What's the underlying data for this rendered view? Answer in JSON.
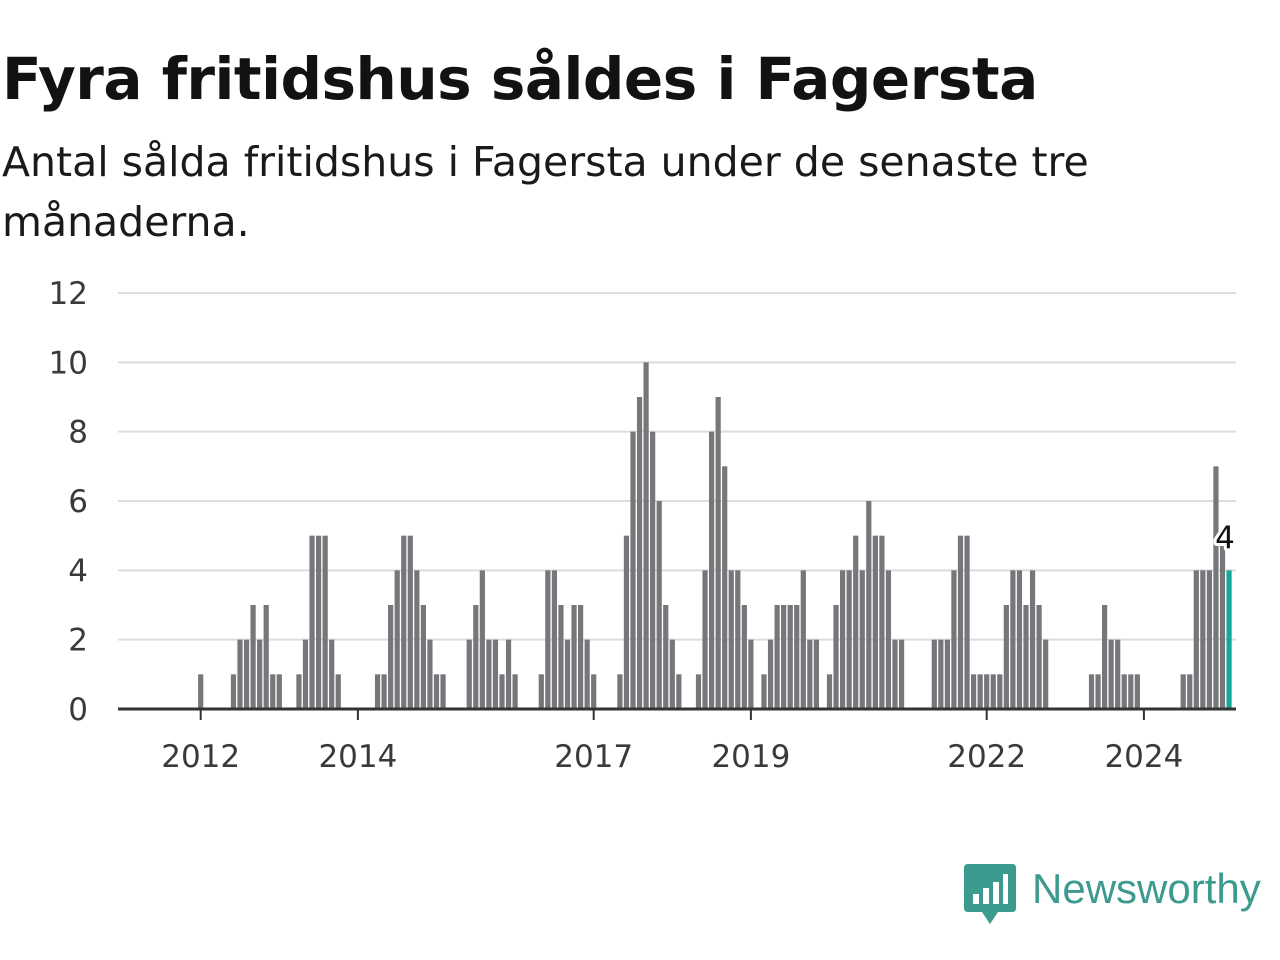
{
  "header": {
    "title": "Fyra fritidshus såldes i Fagersta",
    "subtitle": "Antal sålda fritidshus i Fagersta under de senaste tre månaderna."
  },
  "brand": {
    "name": "Newsworthy",
    "icon": "newsworthy-logo-icon",
    "color": "#3c9a8e"
  },
  "chart_data": {
    "type": "bar",
    "title": "",
    "xlabel": "",
    "ylabel": "",
    "ylim": [
      0,
      12
    ],
    "yticks": [
      0,
      2,
      4,
      6,
      8,
      10,
      12
    ],
    "grid": true,
    "x_start": "2011-01",
    "xticks": [
      {
        "label": "2012",
        "at": "2012-01"
      },
      {
        "label": "2014",
        "at": "2014-01"
      },
      {
        "label": "2017",
        "at": "2017-01"
      },
      {
        "label": "2019",
        "at": "2019-01"
      },
      {
        "label": "2022",
        "at": "2022-01"
      },
      {
        "label": "2024",
        "at": "2024-01"
      }
    ],
    "colors": {
      "bar": "#77767b",
      "highlight": "#16a69a",
      "grid": "#dddddd",
      "axis": "#333333"
    },
    "highlight_label": "4",
    "series": [
      {
        "values": [
          0,
          0,
          0,
          0,
          0,
          0,
          0,
          0,
          0,
          0,
          0,
          0,
          1,
          0,
          0,
          0,
          0,
          1,
          2,
          2,
          3,
          2,
          3,
          1,
          1,
          0,
          0,
          1,
          2,
          5,
          5,
          5,
          2,
          1,
          0,
          0,
          0,
          0,
          0,
          1,
          1,
          3,
          4,
          5,
          5,
          4,
          3,
          2,
          1,
          1,
          0,
          0,
          0,
          2,
          3,
          4,
          2,
          2,
          1,
          2,
          1,
          0,
          0,
          0,
          1,
          4,
          4,
          3,
          2,
          3,
          3,
          2,
          1,
          0,
          0,
          0,
          1,
          5,
          8,
          9,
          10,
          8,
          6,
          3,
          2,
          1,
          0,
          0,
          1,
          4,
          8,
          9,
          7,
          4,
          4,
          3,
          2,
          0,
          1,
          2,
          3,
          3,
          3,
          3,
          4,
          2,
          2,
          0,
          1,
          3,
          4,
          4,
          5,
          4,
          6,
          5,
          5,
          4,
          2,
          2,
          0,
          0,
          0,
          0,
          2,
          2,
          2,
          4,
          5,
          5,
          1,
          1,
          1,
          1,
          1,
          3,
          4,
          4,
          3,
          4,
          3,
          2,
          0,
          0,
          0,
          0,
          0,
          0,
          1,
          1,
          3,
          2,
          2,
          1,
          1,
          1,
          0,
          0,
          0,
          0,
          0,
          0,
          1,
          1,
          4,
          4,
          4,
          7,
          5,
          4
        ]
      }
    ]
  }
}
